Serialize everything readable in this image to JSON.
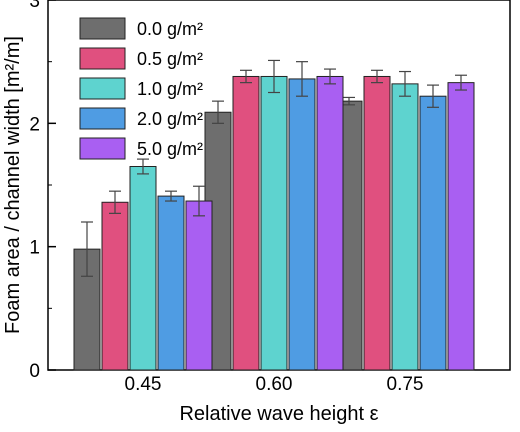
{
  "chart_data": {
    "type": "bar",
    "xlabel": "Relative wave height ε",
    "ylabel": "Foam area / channel width [m²/m]",
    "categories": [
      "0.45",
      "0.60",
      "0.75"
    ],
    "ylim": [
      0,
      3
    ],
    "yticks": [
      "0",
      "1",
      "2",
      "3"
    ],
    "legend_position": "top-left",
    "series": [
      {
        "name": "0.0 g/m²",
        "color": "#6e6e6e",
        "values": [
          0.98,
          2.09,
          2.18
        ],
        "errors": [
          0.22,
          0.09,
          0.03
        ]
      },
      {
        "name": "0.5 g/m²",
        "color": "#e0507f",
        "values": [
          1.36,
          2.38,
          2.38
        ],
        "errors": [
          0.09,
          0.05,
          0.05
        ]
      },
      {
        "name": "1.0 g/m²",
        "color": "#5ed3cf",
        "values": [
          1.65,
          2.38,
          2.32
        ],
        "errors": [
          0.06,
          0.13,
          0.1
        ]
      },
      {
        "name": "2.0 g/m²",
        "color": "#4f9ce3",
        "values": [
          1.41,
          2.36,
          2.22
        ],
        "errors": [
          0.04,
          0.14,
          0.09
        ]
      },
      {
        "name": "5.0 g/m²",
        "color": "#a95ff2",
        "values": [
          1.37,
          2.38,
          2.33
        ],
        "errors": [
          0.12,
          0.06,
          0.06
        ]
      }
    ]
  }
}
